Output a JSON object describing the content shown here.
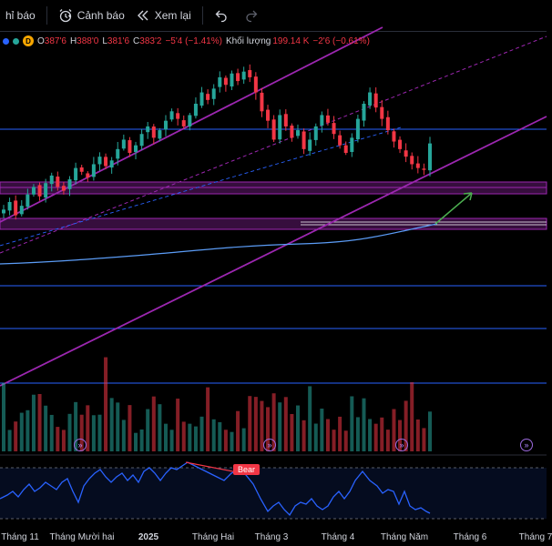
{
  "toolbar": {
    "indicators_label": "hỉ báo",
    "alerts_label": "Cảnh báo",
    "replay_label": "Xem lại"
  },
  "legend": {
    "timeframe_badge": "D",
    "open_label": "O",
    "open_value": "387'6",
    "high_label": "H",
    "high_value": "388'0",
    "low_label": "L",
    "low_value": "381'6",
    "close_label": "C",
    "close_value": "383'2",
    "change_value": "−5'4 (−1.41%)",
    "volume_label": "Khối lượng",
    "volume_value": "199.14 K",
    "volume_change": "−2'6 (−0.61%)"
  },
  "oscillator": {
    "divergence_label": "Bear"
  },
  "xaxis": {
    "labels": [
      "Tháng 11",
      "Tháng Mười hai",
      "2025",
      "Tháng Hai",
      "Tháng 3",
      "Tháng 4",
      "Tháng Năm",
      "Tháng 6",
      "Tháng 7"
    ]
  },
  "colors": {
    "up": "#26a69a",
    "down": "#f23645",
    "channel": "#9c27b0",
    "hline": "#2962ff",
    "ma": "#5b9cf6",
    "oscillator": "#2962ff",
    "projection": "#4caf50"
  },
  "chart_data": {
    "type": "candlestick",
    "note_series": "Daily price candles (approx values), volume bars, oscillator",
    "price_range": [
      300,
      430
    ],
    "candles_close": [
      348,
      352,
      345,
      350,
      356,
      360,
      355,
      362,
      366,
      360,
      358,
      364,
      370,
      368,
      365,
      372,
      376,
      371,
      374,
      380,
      385,
      378,
      382,
      388,
      392,
      386,
      390,
      395,
      400,
      396,
      392,
      398,
      404,
      410,
      406,
      412,
      418,
      414,
      420,
      416,
      421,
      418,
      410,
      400,
      395,
      385,
      398,
      392,
      386,
      390,
      380,
      385,
      392,
      398,
      394,
      388,
      382,
      378,
      386,
      396,
      404,
      410,
      402,
      396,
      390,
      384,
      380,
      376,
      372,
      370,
      369,
      383
    ]
  }
}
